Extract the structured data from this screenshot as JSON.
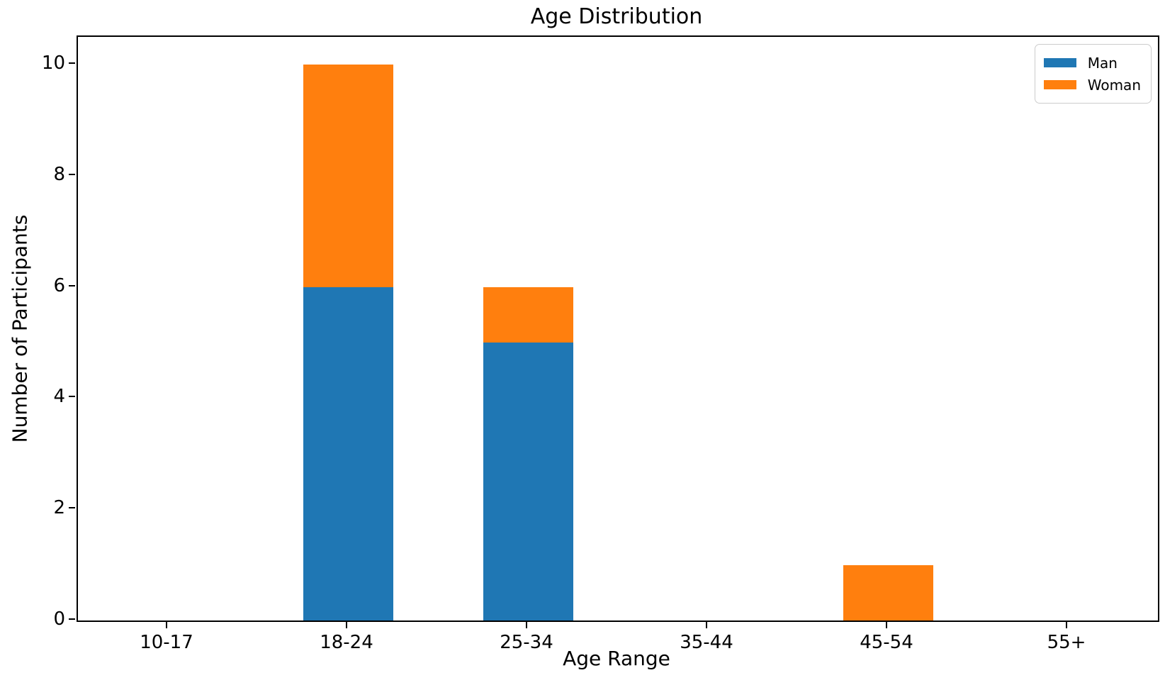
{
  "chart_data": {
    "type": "bar",
    "stacked": true,
    "title": "Age Distribution",
    "xlabel": "Age Range",
    "ylabel": "Number of Participants",
    "categories": [
      "10-17",
      "18-24",
      "25-34",
      "35-44",
      "45-54",
      "55+"
    ],
    "series": [
      {
        "name": "Man",
        "color": "#1f77b4",
        "values": [
          0,
          6,
          5,
          0,
          0,
          0
        ]
      },
      {
        "name": "Woman",
        "color": "#ff7f0e",
        "values": [
          0,
          4,
          1,
          0,
          1,
          0
        ]
      }
    ],
    "yticks": [
      0,
      2,
      4,
      6,
      8,
      10
    ],
    "ylim": [
      0,
      10.5
    ],
    "legend_position": "upper right",
    "grid": false
  }
}
